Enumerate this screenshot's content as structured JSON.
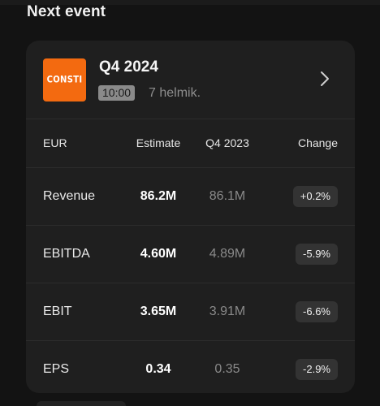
{
  "section": {
    "title": "Next event"
  },
  "event": {
    "logo_text": "CONSTI",
    "title": "Q4 2024",
    "time": "10:00",
    "date": "7 helmik."
  },
  "table": {
    "headers": {
      "currency": "EUR",
      "estimate": "Estimate",
      "previous": "Q4 2023",
      "change": "Change"
    },
    "rows": [
      {
        "metric": "Revenue",
        "estimate": "86.2M",
        "previous": "86.1M",
        "change": "+0.2%"
      },
      {
        "metric": "EBITDA",
        "estimate": "4.60M",
        "previous": "4.89M",
        "change": "-5.9%"
      },
      {
        "metric": "EBIT",
        "estimate": "3.65M",
        "previous": "3.91M",
        "change": "-6.6%"
      },
      {
        "metric": "EPS",
        "estimate": "0.34",
        "previous": "0.35",
        "change": "-2.9%"
      }
    ]
  },
  "colors": {
    "logo_bg": "#f36a10",
    "card_bg": "#1f1f1f",
    "page_bg": "#131313"
  }
}
